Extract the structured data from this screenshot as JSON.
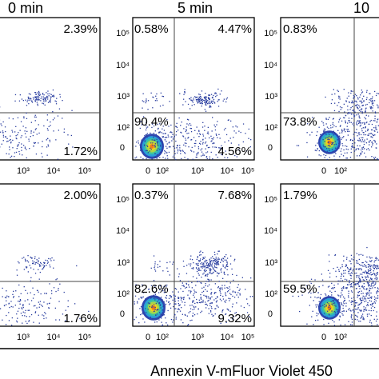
{
  "columns": [
    "0 min",
    "5 min",
    "10"
  ],
  "xlabel": "Annexin V-mFluor Violet 450",
  "x_ticks": [
    "0",
    "10²",
    "10³",
    "10⁴",
    "10⁵"
  ],
  "y_ticks": [
    "0",
    "10²",
    "10³",
    "10⁴",
    "10⁵"
  ],
  "colors": {
    "frame": "#000000",
    "gate": "#444444",
    "dot": "#2b3fa0",
    "core": "#f5d21b"
  },
  "chart_data": [
    {
      "type": "scatter",
      "row": 1,
      "column": "0 min",
      "quadrants": {
        "upper_left": "",
        "upper_right": "2.39%",
        "lower_left": "",
        "lower_right": "1.72%"
      }
    },
    {
      "type": "scatter",
      "row": 1,
      "column": "5 min",
      "quadrants": {
        "upper_left": "0.58%",
        "upper_right": "4.47%",
        "lower_left": "90.4%",
        "lower_right": "4.56%"
      }
    },
    {
      "type": "scatter",
      "row": 1,
      "column": "10",
      "quadrants": {
        "upper_left": "0.83%",
        "upper_right": "",
        "lower_left": "73.8%",
        "lower_right": ""
      }
    },
    {
      "type": "scatter",
      "row": 2,
      "column": "0 min",
      "quadrants": {
        "upper_left": "",
        "upper_right": "2.00%",
        "lower_left": "",
        "lower_right": "1.76%"
      }
    },
    {
      "type": "scatter",
      "row": 2,
      "column": "5 min",
      "quadrants": {
        "upper_left": "0.37%",
        "upper_right": "7.68%",
        "lower_left": "82.6%",
        "lower_right": "9.32%"
      }
    },
    {
      "type": "scatter",
      "row": 2,
      "column": "10",
      "quadrants": {
        "upper_left": "1.79%",
        "upper_right": "",
        "lower_left": "59.5%",
        "lower_right": ""
      }
    }
  ]
}
